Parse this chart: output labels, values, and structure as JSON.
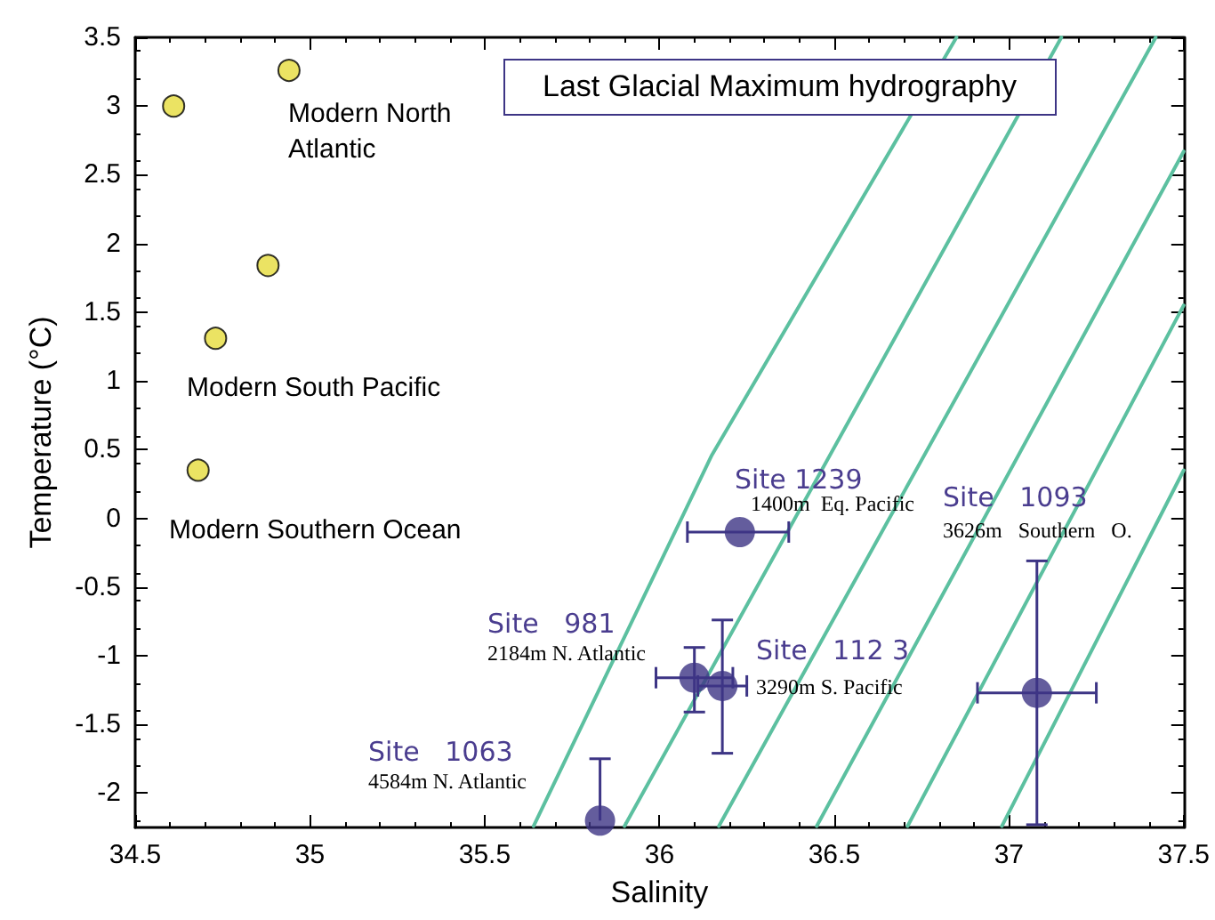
{
  "chart_data": {
    "type": "scatter",
    "title": "Last Glacial Maximum hydrography",
    "xlabel": "Salinity",
    "ylabel": "Temperature (°C)",
    "xlim": [
      34.5,
      37.5
    ],
    "xticks": [
      34.5,
      35,
      35.5,
      36,
      36.5,
      37,
      37.5
    ],
    "ylim": [
      -2.25,
      3.5
    ],
    "yticks": [
      -2,
      -1.5,
      -1,
      -0.5,
      0,
      0.5,
      1,
      1.5,
      2,
      2.5,
      3,
      3.5
    ],
    "marker": "circle",
    "series": [
      {
        "type": "line",
        "marker": "none",
        "color": "#5cc0a0",
        "x": [
          35.64,
          36.15,
          36.85
        ],
        "values": [
          -2.24,
          0.46,
          3.5
        ]
      },
      {
        "type": "line",
        "marker": "none",
        "color": "#5cc0a0",
        "x": [
          35.9,
          37.15
        ],
        "values": [
          -2.24,
          3.5
        ]
      },
      {
        "type": "line",
        "marker": "none",
        "color": "#5cc0a0",
        "x": [
          36.17,
          37.42
        ],
        "values": [
          -2.24,
          3.5
        ]
      },
      {
        "type": "line",
        "marker": "none",
        "color": "#5cc0a0",
        "x": [
          36.45,
          37.5
        ],
        "values": [
          -2.24,
          2.67
        ]
      },
      {
        "type": "line",
        "marker": "none",
        "color": "#5cc0a0",
        "x": [
          36.71,
          37.5
        ],
        "values": [
          -2.24,
          1.55
        ]
      },
      {
        "type": "line",
        "marker": "none",
        "color": "#5cc0a0",
        "x": [
          36.98,
          37.5
        ],
        "values": [
          -2.24,
          0.35
        ]
      },
      {
        "color": "#e6dc3c",
        "x": [
          34.61,
          34.94,
          34.88,
          34.73,
          34.68
        ],
        "values": [
          3.0,
          3.26,
          1.84,
          1.31,
          0.35
        ]
      },
      {
        "color": "#3d3585",
        "x": [
          36.23,
          36.1,
          36.18,
          35.83,
          37.08
        ],
        "values": [
          -0.1,
          -1.16,
          -1.22,
          -2.2,
          -1.27
        ],
        "errors": [
          null,
          [
            -1.41,
            -0.94
          ],
          [
            -1.71,
            -0.74
          ],
          [
            -2.2,
            -1.75
          ],
          [
            -2.23,
            -0.31
          ]
        ],
        "xerrors": [
          [
            36.08,
            36.37
          ],
          [
            35.99,
            36.21
          ],
          [
            36.11,
            36.25
          ],
          null,
          [
            36.91,
            37.25
          ]
        ]
      }
    ],
    "annotations": [
      "Modern North\nAtlantic",
      "Modern South Pacific",
      "Modern Southern Ocean",
      "Site 1239",
      "1400m  Eq. Pacific",
      "Site   1093",
      "3626m   Southern   O.",
      "Site   981",
      "2184m N. Atlantic",
      "Site   112 3",
      "3290m S. Pacific",
      "Site   1063",
      "4584m N. Atlantic"
    ]
  }
}
